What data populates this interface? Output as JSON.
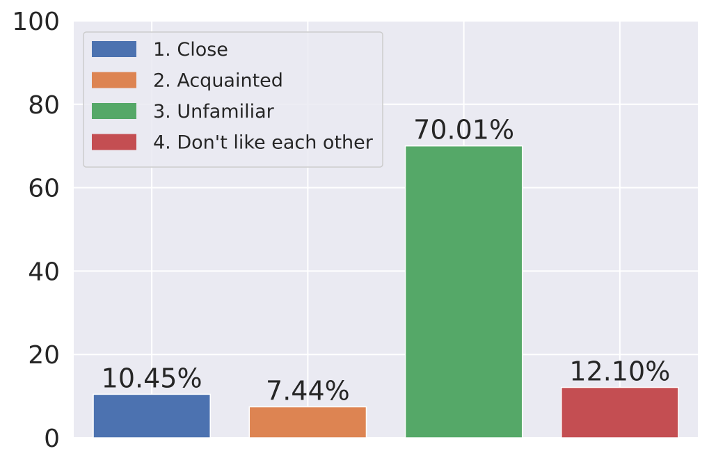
{
  "chart_data": {
    "type": "bar",
    "categories": [
      "1. Close",
      "2. Acquainted",
      "3. Unfamiliar",
      "4. Don't like each other"
    ],
    "values": [
      10.45,
      7.44,
      70.01,
      12.1
    ],
    "data_labels": [
      "10.45%",
      "7.44%",
      "70.01%",
      "12.10%"
    ],
    "colors": [
      "#4c72b0",
      "#dd8452",
      "#55a868",
      "#c44e52"
    ],
    "ylim": [
      0,
      100
    ],
    "yticks": [
      0,
      20,
      40,
      60,
      80,
      100
    ],
    "grid": true,
    "legend": {
      "placement": "top-left",
      "entries": [
        "1. Close",
        "2. Acquainted",
        "3. Unfamiliar",
        "4. Don't like each other"
      ]
    },
    "background_color": "#eaeaf2",
    "grid_color": "#ffffff"
  }
}
